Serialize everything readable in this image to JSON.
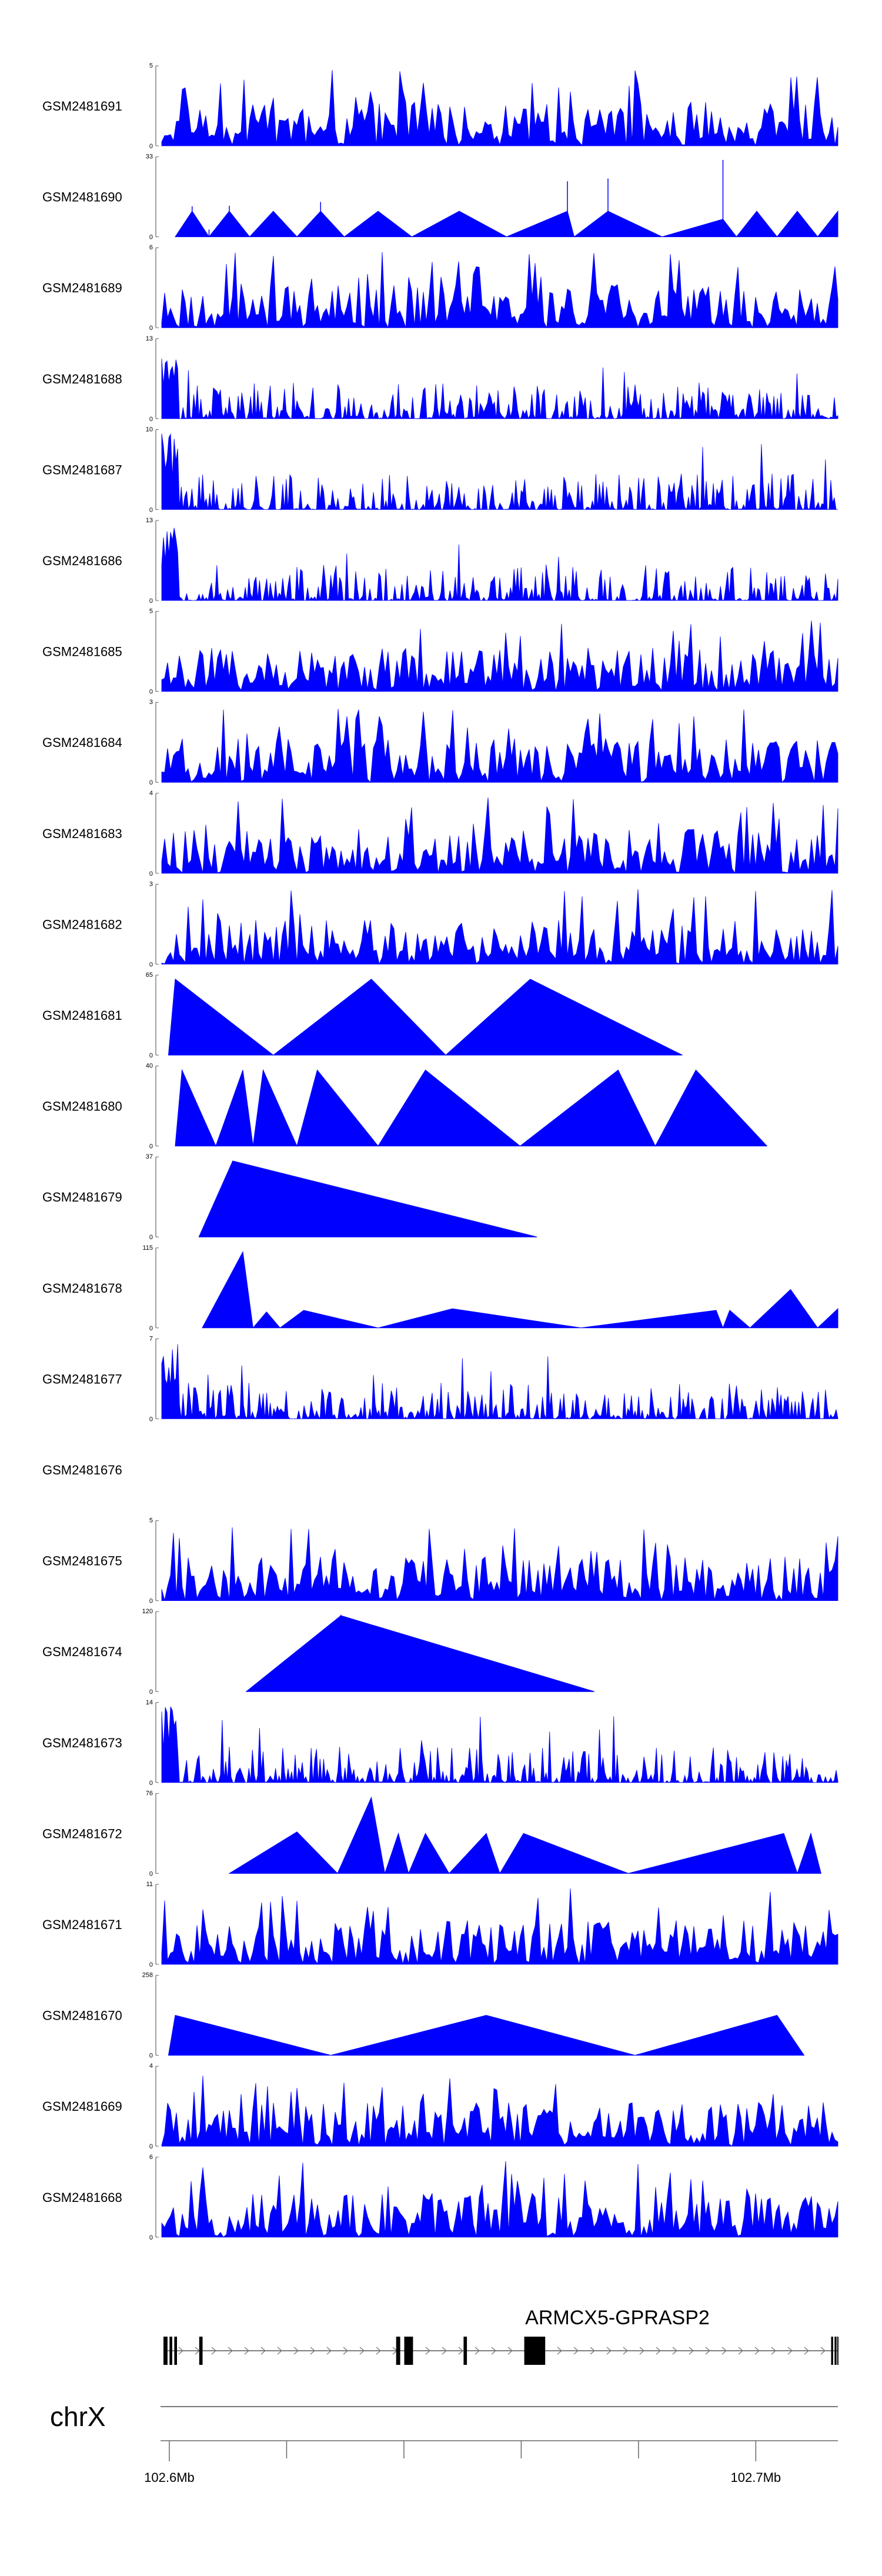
{
  "chart_data": {
    "type": "area",
    "title": "",
    "track_color": "#0000ff",
    "axis_color": "#666666",
    "tracks": [
      {
        "name": "GSM2481691",
        "ymax": 5,
        "ymin": 0,
        "pattern": "dense",
        "seed": 11
      },
      {
        "name": "GSM2481690",
        "ymax": 33,
        "ymin": 0,
        "pattern": "peaks",
        "peaks": [
          [
            0.02,
            0,
            0
          ],
          [
            0.045,
            0.32,
            0.09
          ],
          [
            0.07,
            0,
            0.09
          ],
          [
            0.1,
            0.32,
            0.1
          ],
          [
            0.13,
            0,
            0
          ],
          [
            0.165,
            0.32,
            0
          ],
          [
            0.2,
            0,
            0
          ],
          [
            0.235,
            0.32,
            0.17
          ],
          [
            0.27,
            0,
            0
          ],
          [
            0.32,
            0.32,
            0
          ],
          [
            0.37,
            0,
            0
          ],
          [
            0.44,
            0.32,
            0
          ],
          [
            0.51,
            0,
            0
          ],
          [
            0.6,
            0.32,
            0.02
          ],
          [
            0.6,
            0.32,
            0.55
          ],
          [
            0.61,
            0,
            0
          ],
          [
            0.66,
            0.32,
            0.6
          ],
          [
            0.74,
            0,
            0
          ],
          [
            0.83,
            0.22,
            0
          ],
          [
            0.83,
            0.22,
            0.95
          ],
          [
            0.85,
            0,
            0
          ],
          [
            0.88,
            0.32,
            0
          ],
          [
            0.91,
            0,
            0
          ],
          [
            0.94,
            0.32,
            0
          ],
          [
            0.97,
            0,
            0
          ],
          [
            1.0,
            0.32,
            0
          ]
        ]
      },
      {
        "name": "GSM2481689",
        "ymax": 6,
        "ymin": 0,
        "pattern": "dense",
        "seed": 23
      },
      {
        "name": "GSM2481688",
        "ymax": 13,
        "ymin": 0,
        "pattern": "sparse",
        "seed": 37
      },
      {
        "name": "GSM2481687",
        "ymax": 10,
        "ymin": 0,
        "pattern": "sparse",
        "seed": 41
      },
      {
        "name": "GSM2481686",
        "ymax": 13,
        "ymin": 0,
        "pattern": "sparse",
        "seed": 53
      },
      {
        "name": "GSM2481685",
        "ymax": 5,
        "ymin": 0,
        "pattern": "dense",
        "seed": 61
      },
      {
        "name": "GSM2481684",
        "ymax": 3,
        "ymin": 0,
        "pattern": "dense",
        "seed": 71
      },
      {
        "name": "GSM2481683",
        "ymax": 4,
        "ymin": 0,
        "pattern": "dense",
        "seed": 83
      },
      {
        "name": "GSM2481682",
        "ymax": 3,
        "ymin": 0,
        "pattern": "dense",
        "seed": 97
      },
      {
        "name": "GSM2481681",
        "ymax": 65,
        "ymin": 0,
        "pattern": "peaks",
        "peaks": [
          [
            0.01,
            0,
            0
          ],
          [
            0.02,
            0.95,
            0
          ],
          [
            0.165,
            0,
            0
          ],
          [
            0.31,
            0.95,
            0
          ],
          [
            0.42,
            0,
            0
          ],
          [
            0.545,
            0.95,
            0
          ],
          [
            0.77,
            0,
            0
          ]
        ]
      },
      {
        "name": "GSM2481680",
        "ymax": 40,
        "ymin": 0,
        "pattern": "peaks",
        "peaks": [
          [
            0.02,
            0,
            0
          ],
          [
            0.03,
            0.95,
            0
          ],
          [
            0.08,
            0,
            0
          ],
          [
            0.12,
            0.95,
            0
          ],
          [
            0.135,
            0,
            0
          ],
          [
            0.15,
            0.95,
            0
          ],
          [
            0.2,
            0,
            0
          ],
          [
            0.23,
            0.95,
            0
          ],
          [
            0.32,
            0,
            0
          ],
          [
            0.39,
            0.95,
            0
          ],
          [
            0.53,
            0,
            0
          ],
          [
            0.675,
            0.95,
            0
          ],
          [
            0.73,
            0,
            0
          ],
          [
            0.79,
            0.95,
            0
          ],
          [
            0.895,
            0,
            0
          ]
        ]
      },
      {
        "name": "GSM2481679",
        "ymax": 37,
        "ymin": 0,
        "pattern": "peaks",
        "peaks": [
          [
            0.055,
            0,
            0
          ],
          [
            0.105,
            0.95,
            0
          ],
          [
            0.555,
            0,
            0
          ]
        ]
      },
      {
        "name": "GSM2481678",
        "ymax": 115,
        "ymin": 0,
        "pattern": "peaks",
        "peaks": [
          [
            0.06,
            0,
            0
          ],
          [
            0.12,
            0.95,
            0
          ],
          [
            0.135,
            0,
            0
          ],
          [
            0.155,
            0.2,
            0
          ],
          [
            0.175,
            0,
            0
          ],
          [
            0.21,
            0.22,
            0
          ],
          [
            0.32,
            0,
            0
          ],
          [
            0.43,
            0.24,
            0
          ],
          [
            0.62,
            0,
            0
          ],
          [
            0.82,
            0.22,
            0
          ],
          [
            0.83,
            0,
            0
          ],
          [
            0.84,
            0.22,
            0
          ],
          [
            0.87,
            0,
            0
          ],
          [
            0.93,
            0.48,
            0
          ],
          [
            0.97,
            0,
            0
          ],
          [
            1.0,
            0.24,
            0
          ]
        ]
      },
      {
        "name": "GSM2481677",
        "ymax": 7,
        "ymin": 0,
        "pattern": "sparse",
        "seed": 113
      },
      {
        "name": "GSM2481676",
        "ymax": null,
        "ymin": null,
        "pattern": "empty"
      },
      {
        "name": "GSM2481675",
        "ymax": 5,
        "ymin": 0,
        "pattern": "dense",
        "seed": 127
      },
      {
        "name": "GSM2481674",
        "ymax": 120,
        "ymin": 0,
        "pattern": "peaks",
        "peaks": [
          [
            0.125,
            0,
            0
          ],
          [
            0.265,
            0.95,
            0
          ],
          [
            0.265,
            0.95,
            0.2
          ],
          [
            0.64,
            0,
            0
          ]
        ]
      },
      {
        "name": "GSM2481673",
        "ymax": 14,
        "ymin": 0,
        "pattern": "sparse",
        "seed": 139
      },
      {
        "name": "GSM2481672",
        "ymax": 76,
        "ymin": 0,
        "pattern": "peaks",
        "peaks": [
          [
            0.1,
            0,
            0
          ],
          [
            0.2,
            0.52,
            0
          ],
          [
            0.26,
            0,
            0
          ],
          [
            0.31,
            0.95,
            0
          ],
          [
            0.33,
            0,
            0
          ],
          [
            0.35,
            0.5,
            0
          ],
          [
            0.365,
            0,
            0
          ],
          [
            0.39,
            0.5,
            0
          ],
          [
            0.425,
            0,
            0
          ],
          [
            0.48,
            0.5,
            0
          ],
          [
            0.5,
            0,
            0
          ],
          [
            0.535,
            0.5,
            0
          ],
          [
            0.69,
            0,
            0
          ],
          [
            0.92,
            0.5,
            0
          ],
          [
            0.94,
            0,
            0
          ],
          [
            0.96,
            0.5,
            0
          ],
          [
            0.975,
            0,
            0
          ]
        ]
      },
      {
        "name": "GSM2481671",
        "ymax": 11,
        "ymin": 0,
        "pattern": "dense",
        "seed": 149
      },
      {
        "name": "GSM2481670",
        "ymax": 258,
        "ymin": 0,
        "pattern": "peaks",
        "peaks": [
          [
            0.01,
            0,
            0
          ],
          [
            0.02,
            0.5,
            0
          ],
          [
            0.25,
            0,
            0
          ],
          [
            0.48,
            0.5,
            0
          ],
          [
            0.7,
            0,
            0
          ],
          [
            0.91,
            0.5,
            0
          ],
          [
            0.95,
            0,
            0
          ]
        ]
      },
      {
        "name": "GSM2481669",
        "ymax": 4,
        "ymin": 0,
        "pattern": "dense",
        "seed": 163
      },
      {
        "name": "GSM2481668",
        "ymax": 6,
        "ymin": 0,
        "pattern": "dense",
        "seed": 173
      }
    ],
    "gene": {
      "label": "ARMCX5-GPRASP2",
      "exons_frac": [
        [
          0.0,
          0.006
        ],
        [
          0.009,
          0.013
        ],
        [
          0.016,
          0.02
        ],
        [
          0.053,
          0.058
        ],
        [
          0.345,
          0.351
        ],
        [
          0.357,
          0.37
        ],
        [
          0.445,
          0.45
        ],
        [
          0.535,
          0.566
        ],
        [
          0.99,
          0.993
        ],
        [
          0.995,
          0.998
        ],
        [
          0.999,
          1.0
        ]
      ]
    },
    "chromosome": "chrX",
    "axis": {
      "ticks": [
        102.6,
        102.62,
        102.64,
        102.66,
        102.68,
        102.7
      ],
      "tick_labels": {
        "102.6": "102.6Mb",
        "102.7": "102.7Mb"
      },
      "range_mb": [
        102.599,
        102.714
      ]
    }
  }
}
